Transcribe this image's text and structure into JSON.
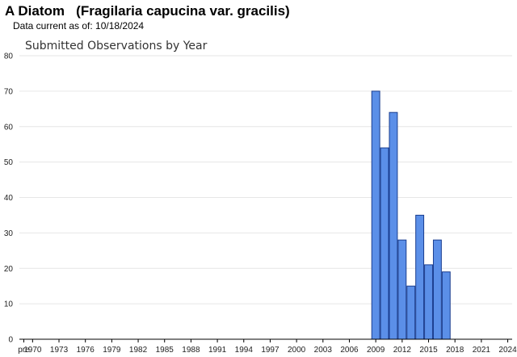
{
  "header": {
    "title": "A Diatom   (Fragilaria capucina var. gracilis)",
    "data_current": "Data current as of: 10/18/2024"
  },
  "colors": {
    "bar_fill": "#5b8fe8",
    "bar_stroke": "#1a3d8f",
    "gridline": "#e6e6e6",
    "axis": "#000000"
  },
  "chart_data": {
    "type": "bar",
    "title": "Submitted Observations by Year",
    "xlabel": "",
    "ylabel": "",
    "ylim": [
      0,
      80
    ],
    "yticks": [
      0,
      10,
      20,
      30,
      40,
      50,
      60,
      70,
      80
    ],
    "grid": true,
    "legend": "none",
    "xtick_labels": [
      "pre",
      "1970",
      "1973",
      "1976",
      "1979",
      "1982",
      "1985",
      "1988",
      "1991",
      "1994",
      "1997",
      "2000",
      "2003",
      "2006",
      "2009",
      "2012",
      "2015",
      "2018",
      "2021",
      "2024"
    ],
    "categories": [
      "pre",
      "1970",
      "1971",
      "1972",
      "1973",
      "1974",
      "1975",
      "1976",
      "1977",
      "1978",
      "1979",
      "1980",
      "1981",
      "1982",
      "1983",
      "1984",
      "1985",
      "1986",
      "1987",
      "1988",
      "1989",
      "1990",
      "1991",
      "1992",
      "1993",
      "1994",
      "1995",
      "1996",
      "1997",
      "1998",
      "1999",
      "2000",
      "2001",
      "2002",
      "2003",
      "2004",
      "2005",
      "2006",
      "2007",
      "2008",
      "2009",
      "2010",
      "2011",
      "2012",
      "2013",
      "2014",
      "2015",
      "2016",
      "2017",
      "2018",
      "2019",
      "2020",
      "2021",
      "2022",
      "2023",
      "2024"
    ],
    "values": [
      0,
      0,
      0,
      0,
      0,
      0,
      0,
      0,
      0,
      0,
      0,
      0,
      0,
      0,
      0,
      0,
      0,
      0,
      0,
      0,
      0,
      0,
      0,
      0,
      0,
      0,
      0,
      0,
      0,
      0,
      0,
      0,
      0,
      0,
      0,
      0,
      0,
      0,
      0,
      0,
      70,
      54,
      64,
      28,
      15,
      35,
      21,
      28,
      19,
      0,
      0,
      0,
      0,
      0,
      0,
      0
    ]
  }
}
